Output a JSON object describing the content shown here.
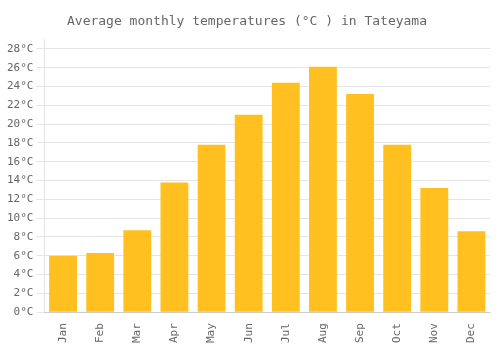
{
  "chart_data": {
    "type": "bar",
    "title": "Average monthly temperatures (°C ) in Tateyama",
    "categories": [
      "Jan",
      "Feb",
      "Mar",
      "Apr",
      "May",
      "Jun",
      "Jul",
      "Aug",
      "Sep",
      "Oct",
      "Nov",
      "Dec"
    ],
    "values": [
      6.0,
      6.3,
      8.7,
      13.8,
      17.8,
      21.0,
      24.4,
      26.1,
      23.2,
      17.8,
      13.2,
      8.6
    ],
    "color": "#FFC020",
    "ylim": [
      0,
      29
    ],
    "yticks": [
      {
        "value": 0,
        "label": "0°C"
      },
      {
        "value": 2,
        "label": "2°C"
      },
      {
        "value": 4,
        "label": "4°C"
      },
      {
        "value": 6,
        "label": "6°C"
      },
      {
        "value": 8,
        "label": "8°C"
      },
      {
        "value": 10,
        "label": "10°C"
      },
      {
        "value": 12,
        "label": "12°C"
      },
      {
        "value": 14,
        "label": "14°C"
      },
      {
        "value": 16,
        "label": "16°C"
      },
      {
        "value": 18,
        "label": "18°C"
      },
      {
        "value": 20,
        "label": "20°C"
      },
      {
        "value": 22,
        "label": "22°C"
      },
      {
        "value": 24,
        "label": "24°C"
      },
      {
        "value": 26,
        "label": "26°C"
      },
      {
        "value": 28,
        "label": "28°C"
      }
    ],
    "grid": true
  }
}
